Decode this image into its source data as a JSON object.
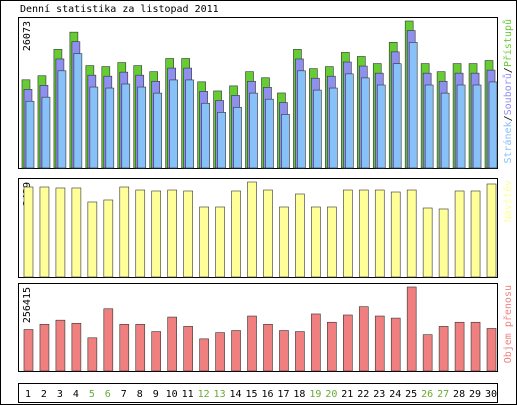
{
  "chart_data": [
    {
      "type": "overlap-bar",
      "title": "Denní statistika za listopad 2011",
      "ylim": [
        0,
        26073
      ],
      "yticks": [
        26073
      ],
      "max_label_color": "#000000",
      "legend_separator": "/",
      "series": [
        {
          "name": "Přístupů",
          "color": "#66cc33",
          "values": [
            15644,
            16363,
            21038,
            24095,
            18161,
            17982,
            18701,
            18161,
            17082,
            19420,
            19420,
            15284,
            13666,
            14565,
            17082,
            16004,
            13306,
            21038,
            17622,
            17982,
            20499,
            19780,
            18521,
            22297,
            26073,
            18521,
            17082,
            18521,
            18521,
            19061
          ]
        },
        {
          "name": "Souborů",
          "color": "#8f8ff0",
          "values": [
            13944,
            14663,
            19338,
            22395,
            16461,
            16282,
            17001,
            16461,
            15382,
            17720,
            17720,
            13584,
            11966,
            12865,
            15382,
            14304,
            11606,
            19338,
            15922,
            16282,
            18799,
            18080,
            16821,
            20597,
            24373,
            16821,
            15382,
            16821,
            16821,
            17361
          ]
        },
        {
          "name": "Stránek",
          "color": "#88c0f8",
          "values": [
            11844,
            12563,
            17238,
            20295,
            14361,
            14182,
            14901,
            14361,
            13282,
            15620,
            15620,
            11484,
            9866,
            10765,
            13282,
            12204,
            9506,
            17238,
            13822,
            14182,
            16699,
            15980,
            14721,
            18497,
            22273,
            14721,
            13282,
            14721,
            14721,
            15261
          ]
        }
      ]
    },
    {
      "type": "bar",
      "ylim": [
        0,
        2429
      ],
      "yticks": [
        2429
      ],
      "series": [
        {
          "name": "Návštěv",
          "color": "#ffff99",
          "values": [
            2301,
            2301,
            2276,
            2276,
            1918,
            1969,
            2301,
            2224,
            2199,
            2224,
            2199,
            1790,
            1790,
            2199,
            2429,
            2224,
            1790,
            2122,
            1790,
            1790,
            2224,
            2224,
            2224,
            2173,
            2224,
            1764,
            1739,
            2199,
            2199,
            2378
          ]
        }
      ]
    },
    {
      "type": "bar",
      "ylim": [
        0,
        256415
      ],
      "yticks": [
        256415
      ],
      "series": [
        {
          "name": "Objem přenosu",
          "color": "#f08080",
          "values": [
            126640,
            142470,
            155134,
            145636,
            101312,
            189960,
            142470,
            142470,
            120308,
            164632,
            136138,
            98146,
            117142,
            123474,
            167798,
            142470,
            123474,
            120308,
            174130,
            148802,
            170964,
            196292,
            167798,
            161466,
            256415,
            110810,
            136138,
            148802,
            148802,
            129806
          ]
        }
      ],
      "categories": [
        "1",
        "2",
        "3",
        "4",
        "5",
        "6",
        "7",
        "8",
        "9",
        "10",
        "11",
        "12",
        "13",
        "14",
        "15",
        "16",
        "17",
        "18",
        "19",
        "20",
        "21",
        "22",
        "23",
        "24",
        "25",
        "26",
        "27",
        "28",
        "29",
        "30"
      ],
      "category_colors": [
        "#000000",
        "#000000",
        "#000000",
        "#000000",
        "#66aa33",
        "#66aa33",
        "#000000",
        "#000000",
        "#000000",
        "#000000",
        "#000000",
        "#66aa33",
        "#66aa33",
        "#000000",
        "#000000",
        "#000000",
        "#000000",
        "#000000",
        "#66aa33",
        "#66aa33",
        "#000000",
        "#000000",
        "#000000",
        "#000000",
        "#000000",
        "#66aa33",
        "#66aa33",
        "#000000",
        "#000000",
        "#000000"
      ]
    }
  ]
}
